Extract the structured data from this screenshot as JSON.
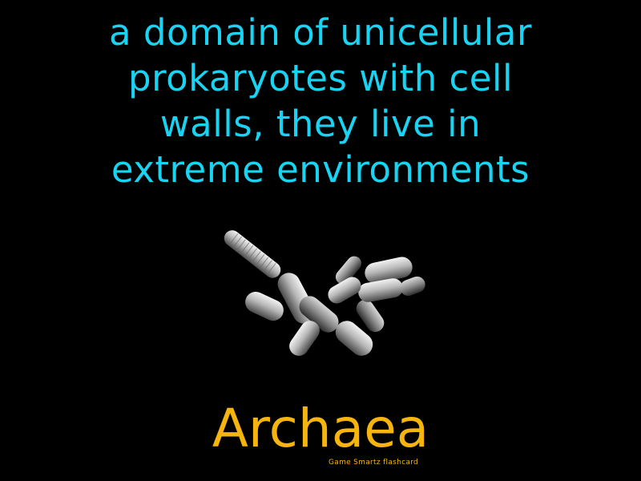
{
  "card": {
    "definition_lines": [
      "a domain of unicellular",
      "prokaryotes with cell",
      "walls, they live in",
      "extreme environments"
    ],
    "term": "Archaea",
    "credit": "Game Smartz flashcard"
  },
  "colors": {
    "background": "#000000",
    "definition_text": "#18d4f2",
    "term_text": "#f6b40e"
  },
  "illustration": {
    "icon": "archaea-microscope-image"
  }
}
